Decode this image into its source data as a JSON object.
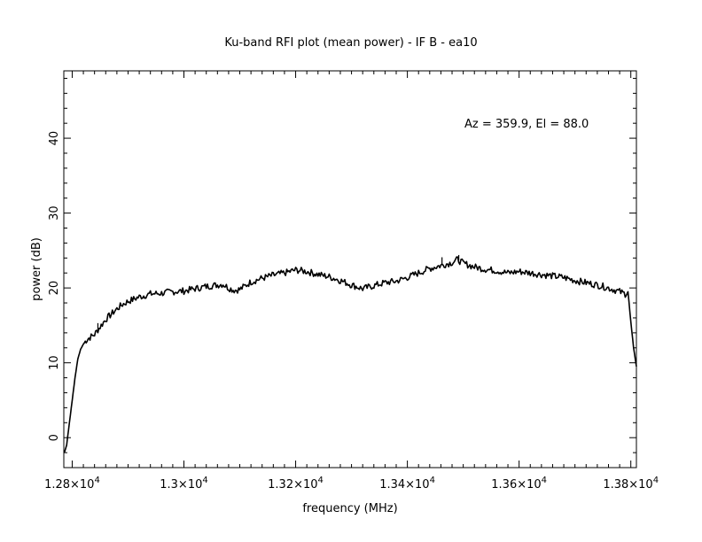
{
  "chart_data": {
    "type": "line",
    "title": "Ku-band RFI plot (mean power) - IF B - ea10",
    "xlabel": "frequency (MHz)",
    "ylabel": "power (dB)",
    "annotation": "Az = 359.9, El = 88.0",
    "xlim": [
      12785,
      13810
    ],
    "ylim": [
      -4,
      49
    ],
    "x_ticks": [
      {
        "value": 12800,
        "mantissa": "1.28",
        "exp": "4"
      },
      {
        "value": 13000,
        "mantissa": "1.3",
        "exp": "4"
      },
      {
        "value": 13200,
        "mantissa": "1.32",
        "exp": "4"
      },
      {
        "value": 13400,
        "mantissa": "1.34",
        "exp": "4"
      },
      {
        "value": 13600,
        "mantissa": "1.36",
        "exp": "4"
      },
      {
        "value": 13800,
        "mantissa": "1.38",
        "exp": "4"
      }
    ],
    "y_ticks": [
      {
        "value": 0,
        "label": "0"
      },
      {
        "value": 10,
        "label": "10"
      },
      {
        "value": 20,
        "label": "20"
      },
      {
        "value": 30,
        "label": "30"
      },
      {
        "value": 40,
        "label": "40"
      }
    ],
    "grid": false,
    "line_color": "#000000",
    "series": [
      {
        "x": [
          12786,
          12790,
          12795,
          12800,
          12805,
          12810,
          12815,
          12820,
          12825,
          12830,
          12840,
          12850,
          12860,
          12870,
          12880,
          12890,
          12900,
          12920,
          12940,
          12960,
          12980,
          13000,
          13020,
          13040,
          13060,
          13070,
          13080,
          13090,
          13100,
          13110,
          13120,
          13140,
          13160,
          13180,
          13200,
          13220,
          13240,
          13260,
          13280,
          13300,
          13320,
          13330,
          13340,
          13360,
          13380,
          13400,
          13420,
          13440,
          13460,
          13480,
          13490,
          13500,
          13520,
          13540,
          13560,
          13580,
          13600,
          13620,
          13640,
          13660,
          13680,
          13700,
          13720,
          13740,
          13760,
          13780,
          13790,
          13795,
          13800,
          13805,
          13810
        ],
        "y": [
          -2,
          -1,
          2,
          5,
          8,
          10.5,
          11.8,
          12.5,
          13,
          13.3,
          13.8,
          14.8,
          15.8,
          16.5,
          17.2,
          17.8,
          18.2,
          18.8,
          19.2,
          19.3,
          19.5,
          19.6,
          19.9,
          20.2,
          20.4,
          20.5,
          20,
          19.7,
          19.8,
          20.3,
          20.8,
          21.3,
          21.7,
          22,
          22.4,
          22.2,
          21.8,
          21.5,
          21,
          20.4,
          19.9,
          20.1,
          20.3,
          20.7,
          20.9,
          21.4,
          22,
          22.6,
          23,
          23.4,
          23.8,
          23.3,
          22.8,
          22.5,
          22.3,
          22,
          22.2,
          22,
          21.8,
          21.6,
          21.4,
          21,
          20.7,
          20.4,
          20,
          19.5,
          19.2,
          19.5,
          15.5,
          12,
          9.5
        ],
        "spikes": [
          {
            "x": 12846,
            "y": 15.3
          },
          {
            "x": 12928,
            "y": 18.6
          },
          {
            "x": 13462,
            "y": 24.1
          },
          {
            "x": 13492,
            "y": 24.4
          }
        ]
      }
    ]
  }
}
